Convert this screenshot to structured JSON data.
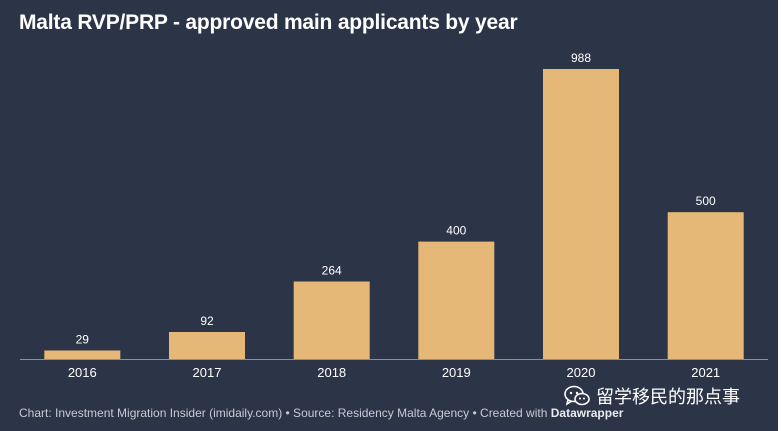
{
  "title": "Malta RVP/PRP - approved main applicants by year",
  "footer": {
    "text": "Chart: Investment Migration Insider (imidaily.com) • Source: Residency Malta Agency • Created with",
    "brand": "Datawrapper"
  },
  "watermark": {
    "text": "留学移民的那点事",
    "icon": "wechat-icon"
  },
  "colors": {
    "background": "#2c3447",
    "bar": "#e5b877",
    "text": "#ffffff",
    "baseline": "#8a909c"
  },
  "chart_data": {
    "type": "bar",
    "title": "Malta RVP/PRP - approved main applicants by year",
    "categories": [
      "2016",
      "2017",
      "2018",
      "2019",
      "2020",
      "2021"
    ],
    "values": [
      29,
      92,
      264,
      400,
      988,
      500
    ],
    "data_labels": [
      "29",
      "92",
      "264",
      "400",
      "988",
      "500"
    ],
    "xlabel": "",
    "ylabel": "",
    "ylim": [
      0,
      988
    ],
    "grid": false,
    "legend": "none"
  }
}
